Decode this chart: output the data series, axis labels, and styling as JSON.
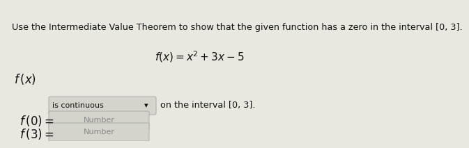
{
  "bg_color": "#e8e8e0",
  "line1": "Use the Intermediate Value Theorem to show that the given function has a zero in the interval [0, 3].",
  "line1_fontsize": 9.2,
  "formula": "$f(x) = x^2 + 3x - 5$",
  "formula_fontsize": 11,
  "fx_label": "$f\\,(x)$",
  "fx_label_fontsize": 12,
  "dropdown_text": "is continuous",
  "dropdown_fontsize": 8,
  "on_interval_text": "on the interval [0, 3].",
  "on_interval_fontsize": 9.2,
  "f0_label": "$f\\,(0) =$",
  "f0_label_fontsize": 12,
  "f3_label": "$f\\,(3) =$",
  "f3_label_fontsize": 12,
  "number_placeholder": "Number",
  "number_fontsize": 8,
  "box_facecolor": "#d4d4cc",
  "box_edgecolor": "#aaaaaa",
  "text_color": "#111111",
  "gray_text": "#888888",
  "figw": 5.53,
  "figh": 1.93
}
